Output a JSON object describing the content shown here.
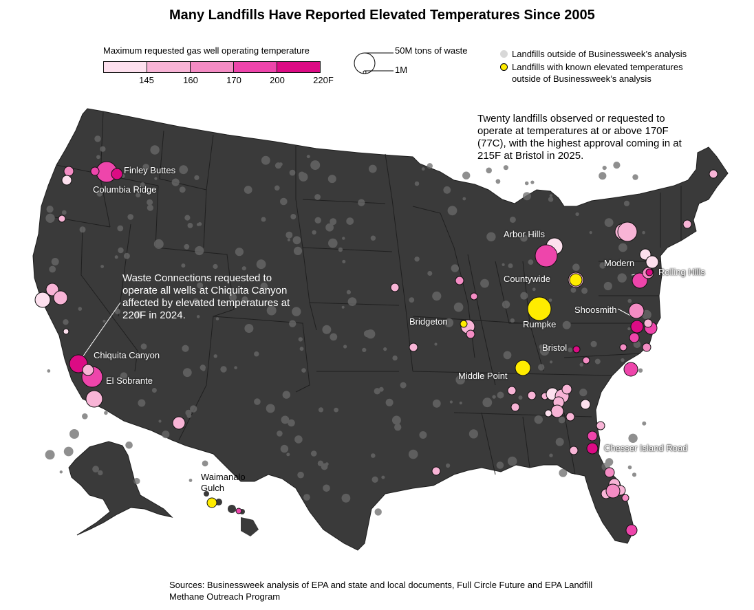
{
  "title": "Many Landfills Have Reported Elevated Temperatures Since 2005",
  "color_legend": {
    "label": "Maximum requested gas well operating temperature",
    "swatches": [
      "#fde0ee",
      "#f8b4d6",
      "#f48cc4",
      "#ee45ab",
      "#dc0b84"
    ],
    "ticks": [
      "145",
      "160",
      "170",
      "200",
      "220F"
    ]
  },
  "size_legend": {
    "large_label": "50M tons of waste",
    "small_label": "1M"
  },
  "dot_legend": {
    "gray_text": "Landfills outside of Businessweek’s analysis",
    "yellow_text": "Landfills with known elevated temperatures outside of Businessweek’s analysis",
    "gray_color": "#d8d8d8",
    "yellow_color": "#ffec00"
  },
  "notes": {
    "twenty": "Twenty landfills observed or requested to operate at temperatures at or above 170F (77C), with the highest approval coming in at 215F at Bristol in 2025.",
    "chiquita": "Waste Connections requested to operate all wells at Chiquita Canyon affected by elevated temperatures at 220F in 2024."
  },
  "labels": {
    "finley": "Finley Buttes",
    "columbia": "Columbia Ridge",
    "chiquita": "Chiquita Canyon",
    "sobrante": "El Sobrante",
    "waimanalo": "Waimanalo Gulch",
    "arbor": "Arbor Hills",
    "countywide": "Countywide",
    "modern": "Modern",
    "rolling": "Rolling Hills",
    "shoosmith": "Shoosmith",
    "bridgeton": "Bridgeton",
    "rumpke": "Rumpke",
    "bristol": "Bristol",
    "middle": "Middle Point",
    "chesser": "Chesser Island Road"
  },
  "sources": "Sources: Businessweek analysis of EPA and state and local documents, Full Circle Future and EPA Landfill Methane Outreach Program"
}
